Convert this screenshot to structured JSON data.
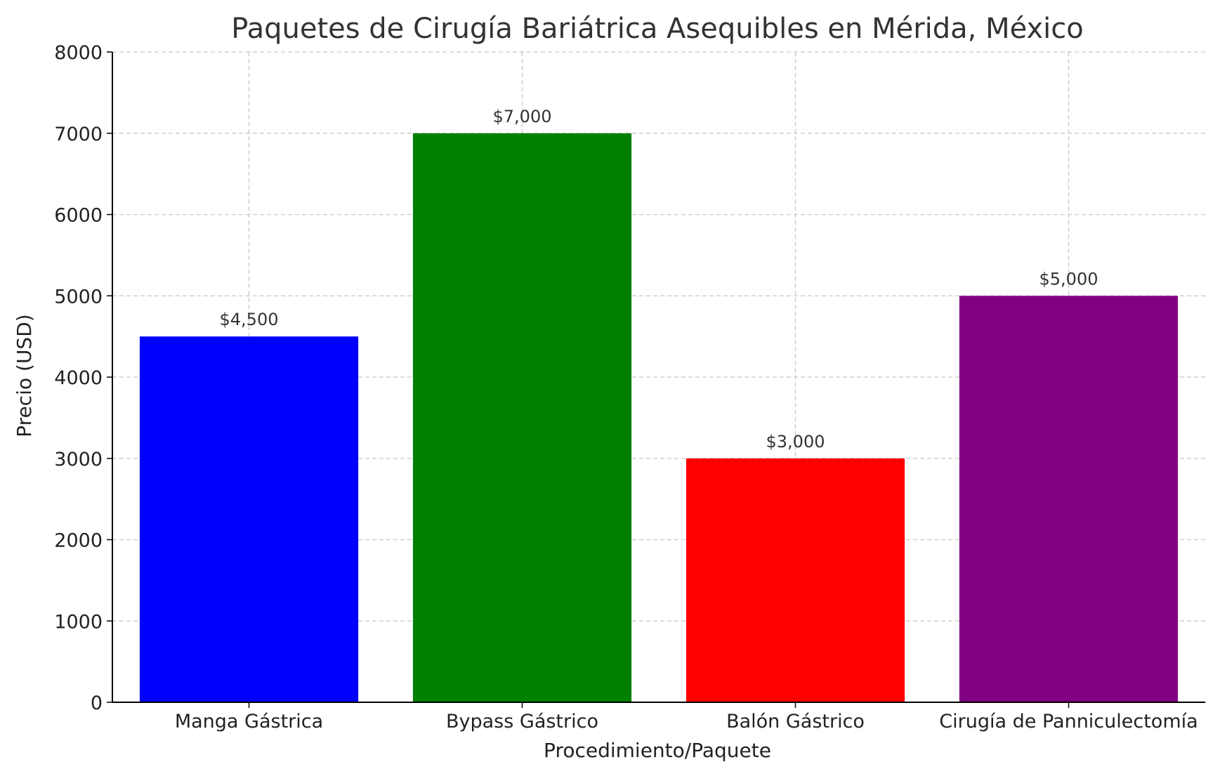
{
  "chart_data": {
    "type": "bar",
    "title": "Paquetes de Cirugía Bariátrica Asequibles en Mérida, México",
    "xlabel": "Procedimiento/Paquete",
    "ylabel": "Precio (USD)",
    "ylim": [
      0,
      8000
    ],
    "yticks": [
      0,
      1000,
      2000,
      3000,
      4000,
      5000,
      6000,
      7000,
      8000
    ],
    "grid": true,
    "categories": [
      "Manga Gástrica",
      "Bypass Gástrico",
      "Balón Gástrico",
      "Cirugía de Panniculectomía"
    ],
    "values": [
      4500,
      7000,
      3000,
      5000
    ],
    "data_labels": [
      "$4,500",
      "$7,000",
      "$3,000",
      "$5,000"
    ],
    "colors": [
      "#0000ff",
      "#008000",
      "#ff0000",
      "#800080"
    ]
  }
}
